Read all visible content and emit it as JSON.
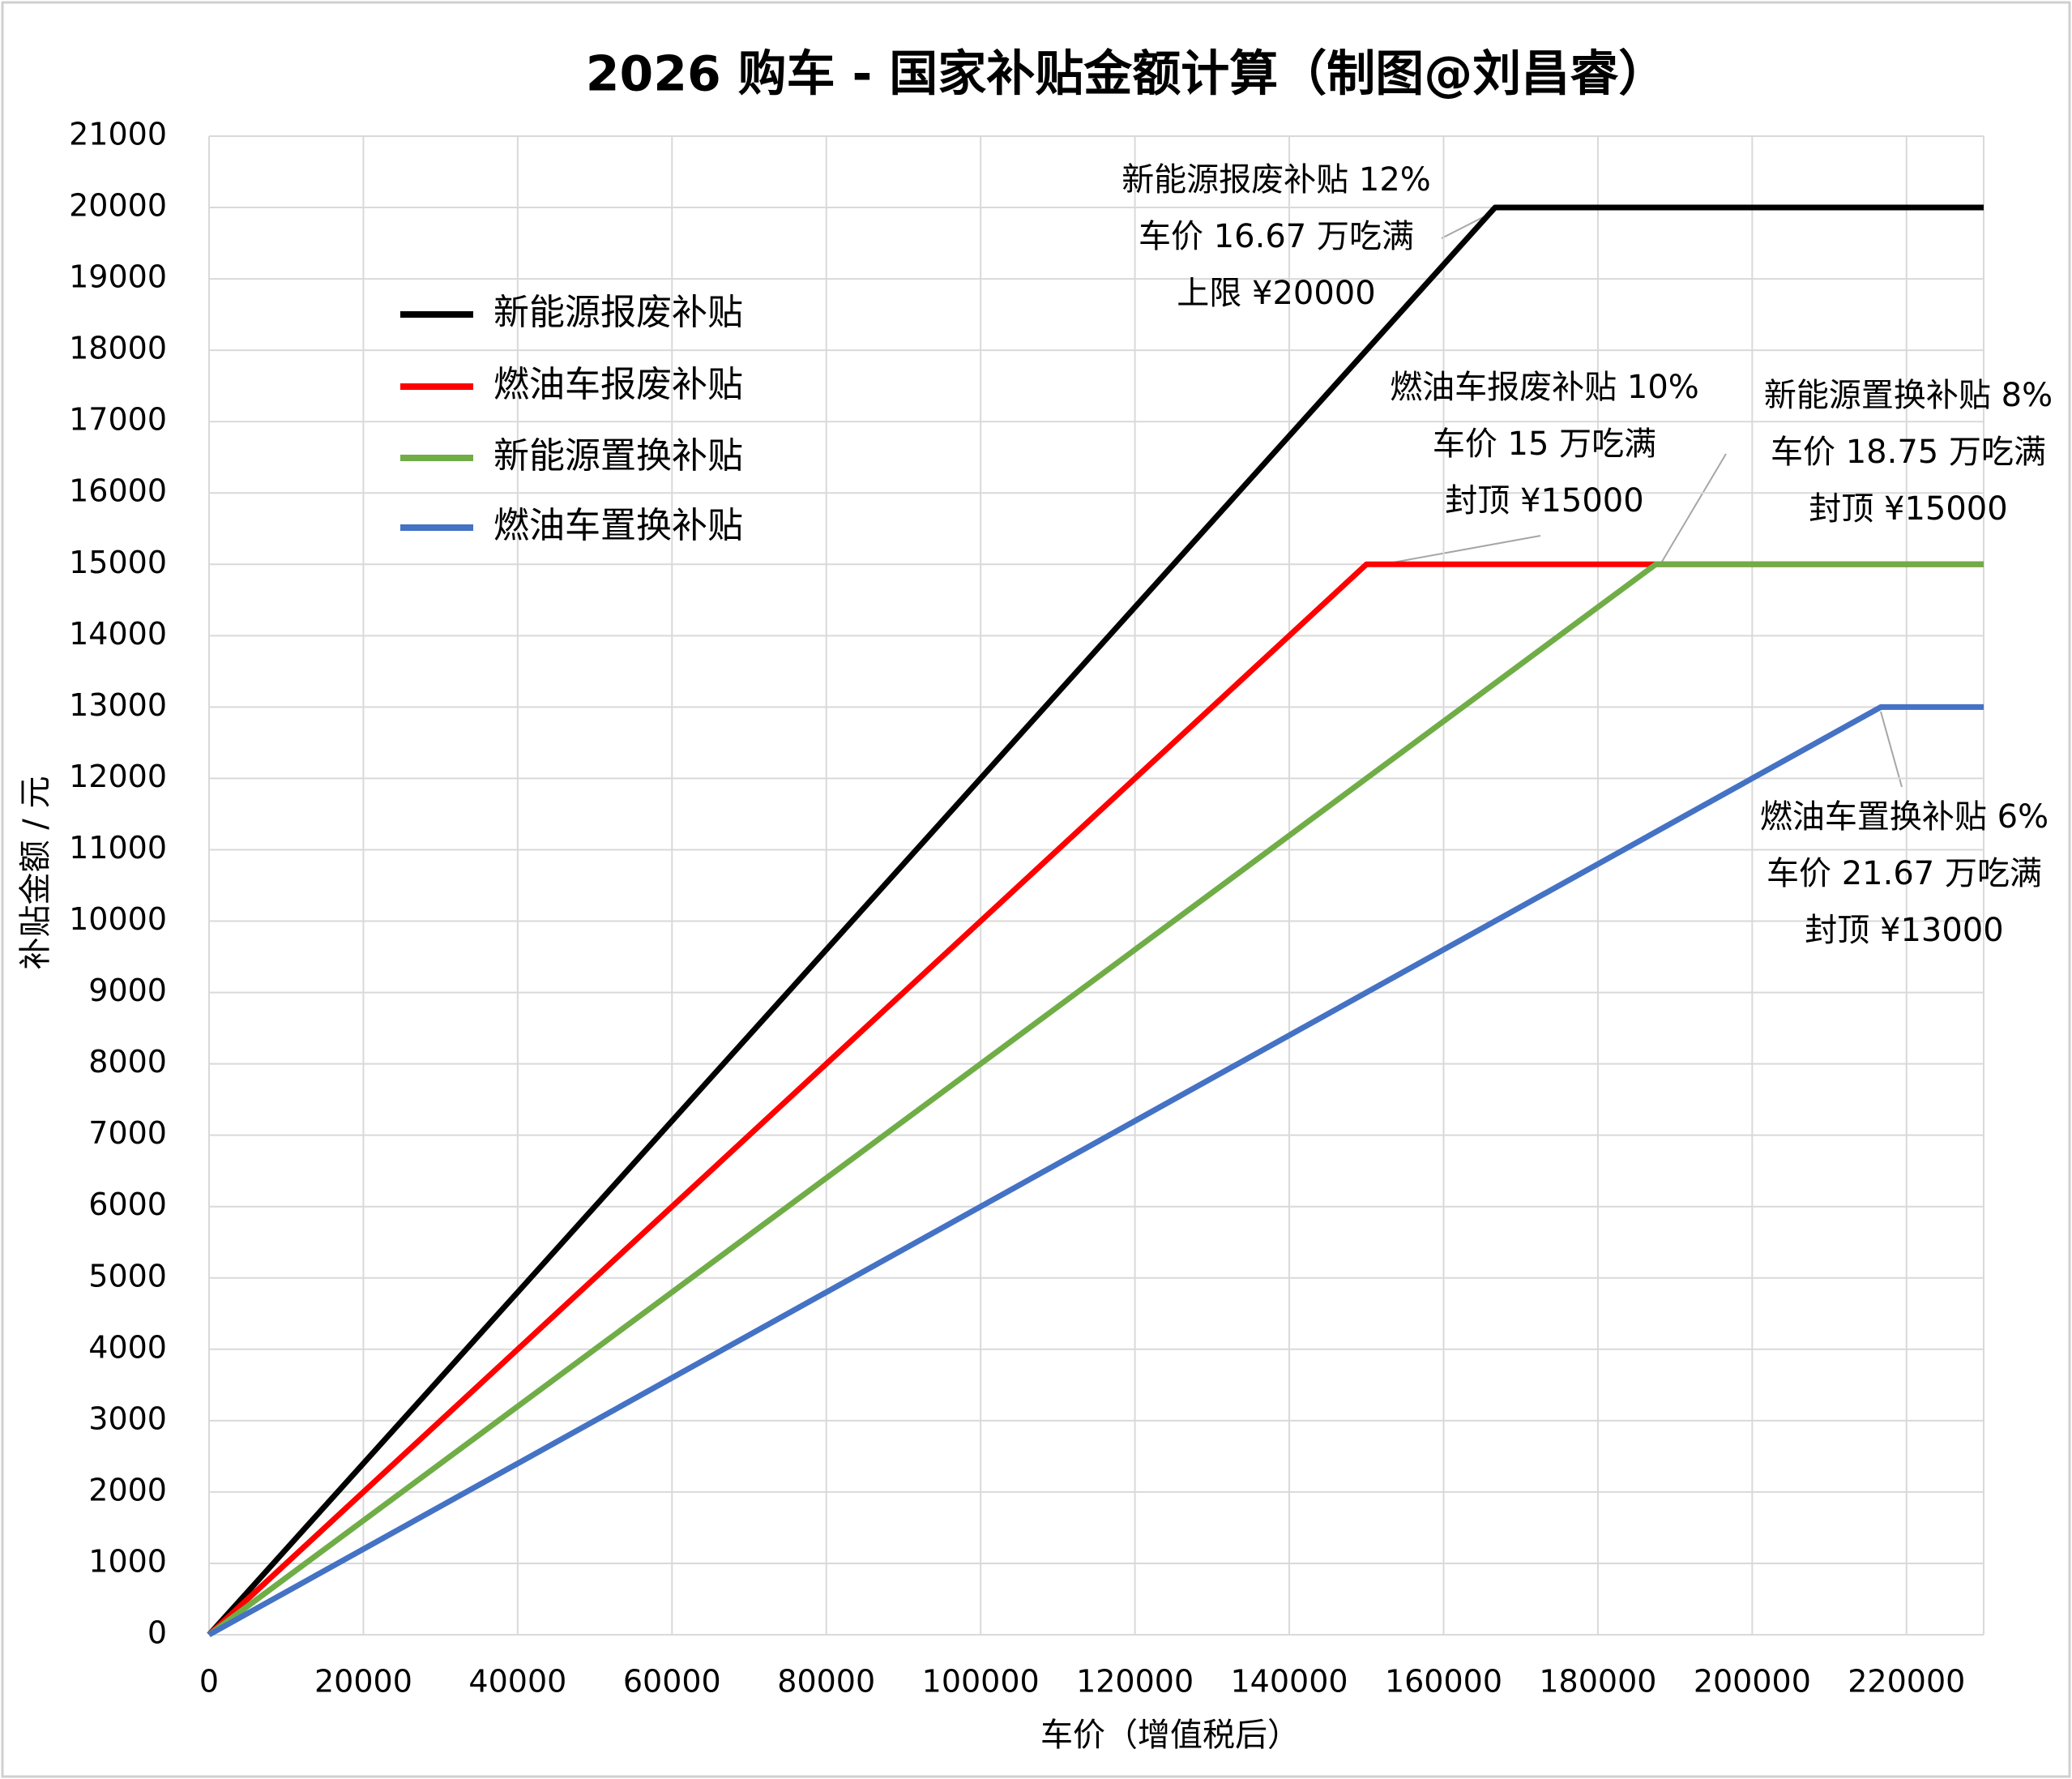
{
  "chart_data": {
    "type": "line",
    "title": "2026 购车 - 国家补贴金额计算（制图@刘昌睿）",
    "x_label": "车价（增值税后）",
    "y_label": "补贴金额 / 元",
    "xlim": [
      0,
      230000
    ],
    "xticks": [
      0,
      20000,
      40000,
      60000,
      80000,
      100000,
      120000,
      140000,
      160000,
      180000,
      200000,
      220000
    ],
    "ylim": [
      0,
      21000
    ],
    "yticks": [
      0,
      1000,
      2000,
      3000,
      4000,
      5000,
      6000,
      7000,
      8000,
      9000,
      10000,
      11000,
      12000,
      13000,
      14000,
      15000,
      16000,
      17000,
      18000,
      19000,
      20000,
      21000
    ],
    "grid": true,
    "legend": "upper left",
    "series": [
      {
        "name": "新能源报废补贴",
        "color": "#000000",
        "x": [
          0,
          166667,
          230000
        ],
        "values": [
          0,
          20000,
          20000
        ]
      },
      {
        "name": "燃油车报废补贴",
        "color": "#ff0000",
        "x": [
          0,
          150000,
          230000
        ],
        "values": [
          0,
          15000,
          15000
        ]
      },
      {
        "name": "新能源置换补贴",
        "color": "#70ad47",
        "x": [
          0,
          187500,
          230000
        ],
        "values": [
          0,
          15000,
          15000
        ]
      },
      {
        "name": "燃油车置换补贴",
        "color": "#4472c4",
        "x": [
          0,
          216667,
          230000
        ],
        "values": [
          0,
          13000,
          13000
        ]
      }
    ],
    "annotations": [
      {
        "lines": [
          "新能源报废补贴 12%",
          "车价 16.67 万吃满",
          "上限 ¥20000"
        ]
      },
      {
        "lines": [
          "燃油车报废补贴 10%",
          "车价 15 万吃满",
          "封顶 ¥15000"
        ]
      },
      {
        "lines": [
          "新能源置换补贴 8%",
          "车价 18.75 万吃满",
          "封顶 ¥15000"
        ]
      },
      {
        "lines": [
          "燃油车置换补贴 6%",
          "车价 21.67 万吃满",
          "封顶 ¥13000"
        ]
      }
    ]
  }
}
